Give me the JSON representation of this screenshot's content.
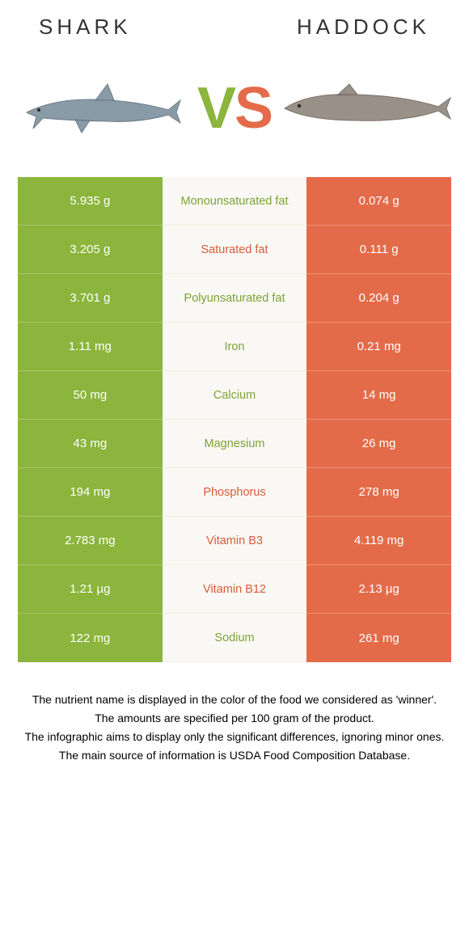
{
  "header": {
    "left_title": "Shark",
    "right_title": "Haddock"
  },
  "hero": {
    "vs_v": "V",
    "vs_s": "S",
    "left_image_alt": "shark",
    "right_image_alt": "haddock"
  },
  "colors": {
    "left_bg": "#8bb53c",
    "right_bg": "#e46b49",
    "mid_bg": "#faf8f4",
    "left_winner_text": "#7ba335",
    "right_winner_text": "#d95c3a"
  },
  "rows": [
    {
      "left": "5.935 g",
      "label": "Monounsaturated fat",
      "right": "0.074 g",
      "winner": "left"
    },
    {
      "left": "3.205 g",
      "label": "Saturated fat",
      "right": "0.111 g",
      "winner": "right"
    },
    {
      "left": "3.701 g",
      "label": "Polyunsaturated fat",
      "right": "0.204 g",
      "winner": "left"
    },
    {
      "left": "1.11 mg",
      "label": "Iron",
      "right": "0.21 mg",
      "winner": "left"
    },
    {
      "left": "50 mg",
      "label": "Calcium",
      "right": "14 mg",
      "winner": "left"
    },
    {
      "left": "43 mg",
      "label": "Magnesium",
      "right": "26 mg",
      "winner": "left"
    },
    {
      "left": "194 mg",
      "label": "Phosphorus",
      "right": "278 mg",
      "winner": "right"
    },
    {
      "left": "2.783 mg",
      "label": "Vitamin B3",
      "right": "4.119 mg",
      "winner": "right"
    },
    {
      "left": "1.21 µg",
      "label": "Vitamin B12",
      "right": "2.13 µg",
      "winner": "right"
    },
    {
      "left": "122 mg",
      "label": "Sodium",
      "right": "261 mg",
      "winner": "left"
    }
  ],
  "footnotes": [
    "The nutrient name is displayed in the color of the food we considered as 'winner'.",
    "The amounts are specified per 100 gram of the product.",
    "The infographic aims to display only the significant differences, ignoring minor ones.",
    "The main source of information is USDA Food Composition Database."
  ]
}
